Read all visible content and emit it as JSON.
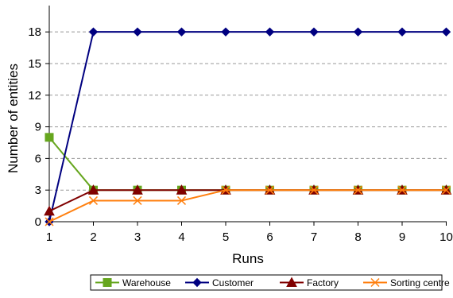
{
  "chart_data": {
    "type": "line",
    "xlabel": "Runs",
    "ylabel": "Number of entities",
    "x": [
      1,
      2,
      3,
      4,
      5,
      6,
      7,
      8,
      9,
      10
    ],
    "x_ticks": [
      "1",
      "2",
      "3",
      "4",
      "5",
      "6",
      "7",
      "8",
      "9",
      "10"
    ],
    "y_ticks": [
      "0",
      "3",
      "6",
      "9",
      "12",
      "15",
      "18"
    ],
    "ylim": [
      0,
      20.5
    ],
    "y_gridlines": "dashed",
    "legend_position": "bottom",
    "series": [
      {
        "name": "Warehouse",
        "color": "#66A61E",
        "marker": "square",
        "values": [
          8,
          3,
          3,
          3,
          3,
          3,
          3,
          3,
          3,
          3
        ]
      },
      {
        "name": "Customer",
        "color": "#000080",
        "marker": "diamond",
        "values": [
          0,
          18,
          18,
          18,
          18,
          18,
          18,
          18,
          18,
          18
        ]
      },
      {
        "name": "Factory",
        "color": "#800000",
        "marker": "triangle",
        "values": [
          1,
          3,
          3,
          3,
          3,
          3,
          3,
          3,
          3,
          3
        ]
      },
      {
        "name": "Sorting centre",
        "color": "#FF7F0E",
        "marker": "x",
        "values": [
          0,
          2,
          2,
          2,
          3,
          3,
          3,
          3,
          3,
          3
        ]
      }
    ]
  }
}
